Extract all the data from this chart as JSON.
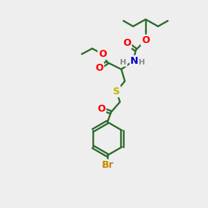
{
  "background_color": "#eeeeee",
  "bond_color": "#2d6b2d",
  "bond_width": 1.8,
  "atom_colors": {
    "O": "#ff0000",
    "N": "#0000cc",
    "S": "#b8b800",
    "Br": "#cc8800",
    "H": "#888888",
    "C": "#2d6b2d"
  },
  "font_size_atom": 10,
  "font_size_small": 8,
  "font_size_br": 10
}
